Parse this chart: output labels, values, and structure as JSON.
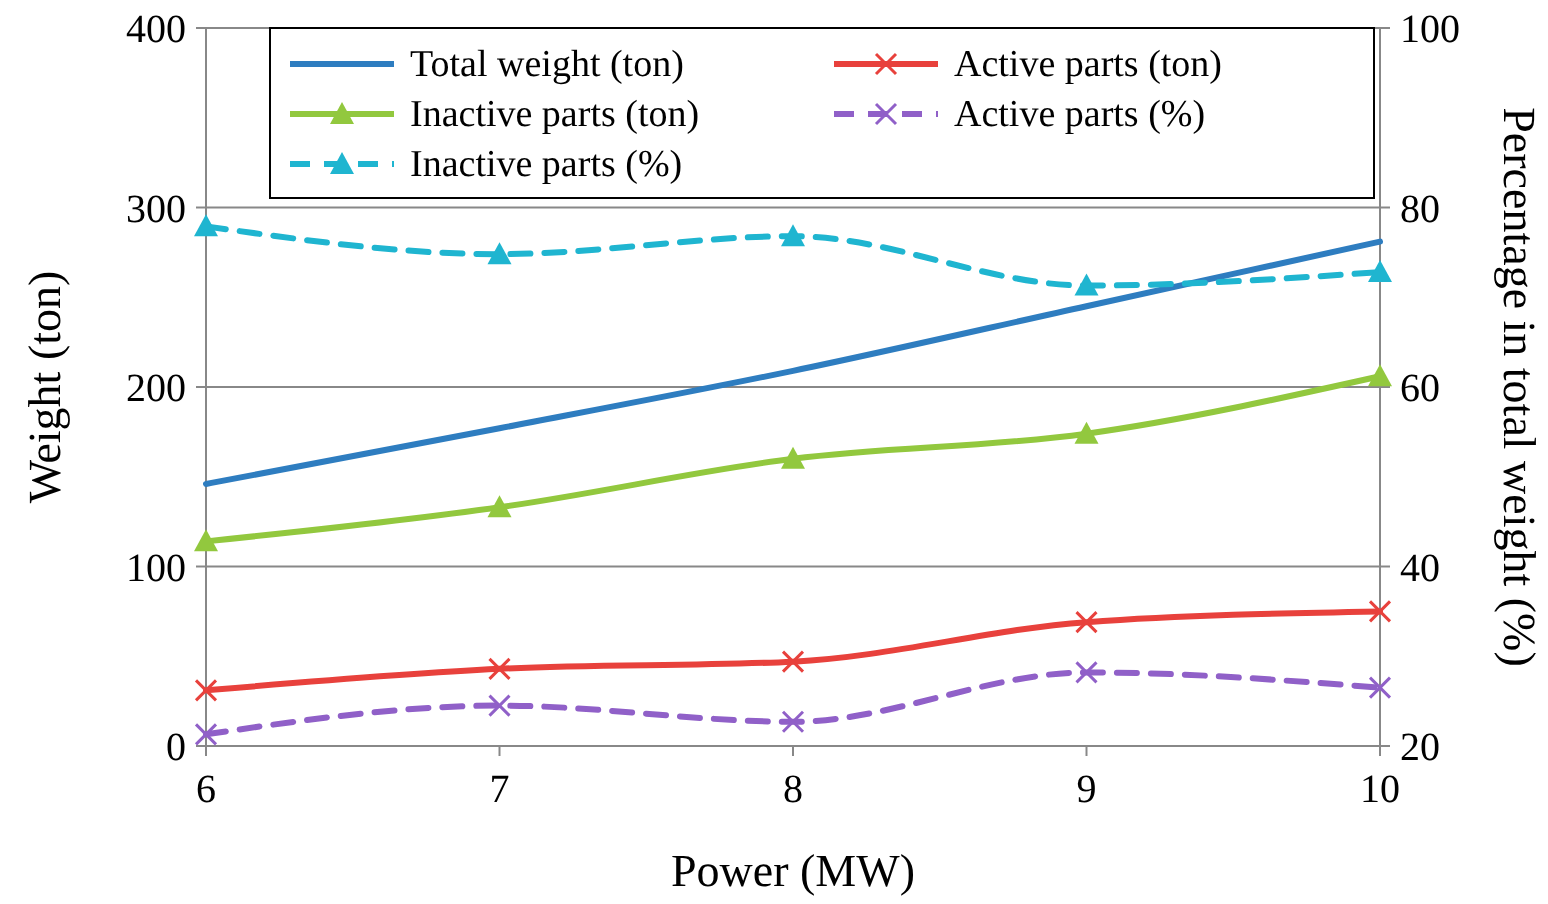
{
  "chart_data": {
    "type": "line",
    "xlabel": "Power (MW)",
    "ylabel": "Weight (ton)",
    "y2label": "Percentage in total weight (%)",
    "x": [
      6,
      7,
      8,
      9,
      10
    ],
    "xlim": [
      6,
      10
    ],
    "xticks": [
      6,
      7,
      8,
      9,
      10
    ],
    "ylim": [
      0,
      400
    ],
    "yticks": [
      0,
      100,
      200,
      300,
      400
    ],
    "y2lim": [
      20,
      100
    ],
    "y2ticks": [
      20,
      40,
      60,
      80,
      100
    ],
    "grid": "y",
    "legend": "top",
    "series": [
      {
        "name": "Total weight (ton)",
        "color": "#2e7dc0",
        "values": [
          146,
          177,
          209,
          245,
          281
        ],
        "marker": "none",
        "line_style": "solid"
      },
      {
        "name": "Active parts (ton)",
        "color": "#e8413c",
        "values": [
          31,
          43,
          47,
          69,
          75
        ],
        "marker": "cross",
        "line_style": "solid"
      },
      {
        "name": "Inactive parts (ton)",
        "color": "#92c83e",
        "values": [
          114,
          133,
          160,
          174,
          206
        ],
        "marker": "triangle",
        "line_style": "solid"
      },
      {
        "name": "Active parts (%)",
        "color": "#9060c8",
        "values": [
          21.3,
          24.5,
          22.7,
          28.2,
          26.5
        ],
        "marker": "cross",
        "line_style": "dashed",
        "axis": "y2"
      },
      {
        "name": "Inactive parts (%)",
        "color": "#1fb5d0",
        "values": [
          77.9,
          74.8,
          76.8,
          71.3,
          72.8
        ],
        "marker": "triangle",
        "line_style": "dashed",
        "axis": "y2"
      }
    ]
  }
}
